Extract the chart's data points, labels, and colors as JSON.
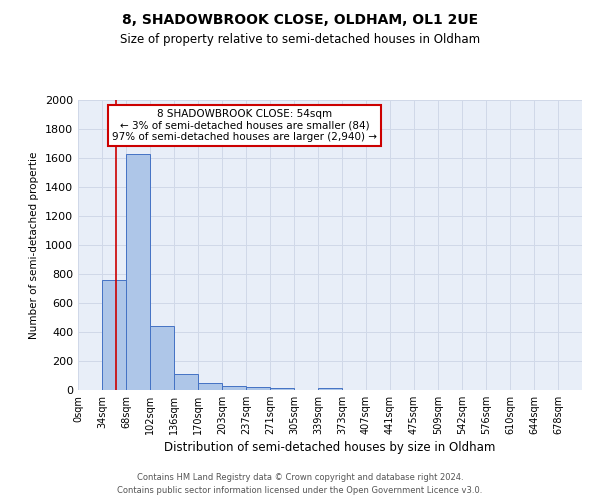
{
  "title1": "8, SHADOWBROOK CLOSE, OLDHAM, OL1 2UE",
  "title2": "Size of property relative to semi-detached houses in Oldham",
  "xlabel": "Distribution of semi-detached houses by size in Oldham",
  "ylabel": "Number of semi-detached propertie",
  "footer1": "Contains HM Land Registry data © Crown copyright and database right 2024.",
  "footer2": "Contains public sector information licensed under the Open Government Licence v3.0.",
  "bar_labels": [
    "0sqm",
    "34sqm",
    "68sqm",
    "102sqm",
    "136sqm",
    "170sqm",
    "203sqm",
    "237sqm",
    "271sqm",
    "305sqm",
    "339sqm",
    "373sqm",
    "407sqm",
    "441sqm",
    "475sqm",
    "509sqm",
    "542sqm",
    "576sqm",
    "610sqm",
    "644sqm",
    "678sqm"
  ],
  "bar_values": [
    0,
    760,
    1630,
    440,
    110,
    48,
    30,
    18,
    12,
    0,
    12,
    0,
    0,
    0,
    0,
    0,
    0,
    0,
    0,
    0,
    0
  ],
  "bar_color": "#aec6e8",
  "bar_edge_color": "#4472c4",
  "ylim": [
    0,
    2000
  ],
  "yticks": [
    0,
    200,
    400,
    600,
    800,
    1000,
    1200,
    1400,
    1600,
    1800,
    2000
  ],
  "property_line_x": 54,
  "bin_width": 34,
  "annotation_title": "8 SHADOWBROOK CLOSE: 54sqm",
  "annotation_line1": "← 3% of semi-detached houses are smaller (84)",
  "annotation_line2": "97% of semi-detached houses are larger (2,940) →",
  "annotation_box_color": "#ffffff",
  "annotation_box_edge": "#cc0000",
  "vertical_line_color": "#cc0000",
  "grid_color": "#d0d8e8",
  "background_color": "#e8eef8"
}
